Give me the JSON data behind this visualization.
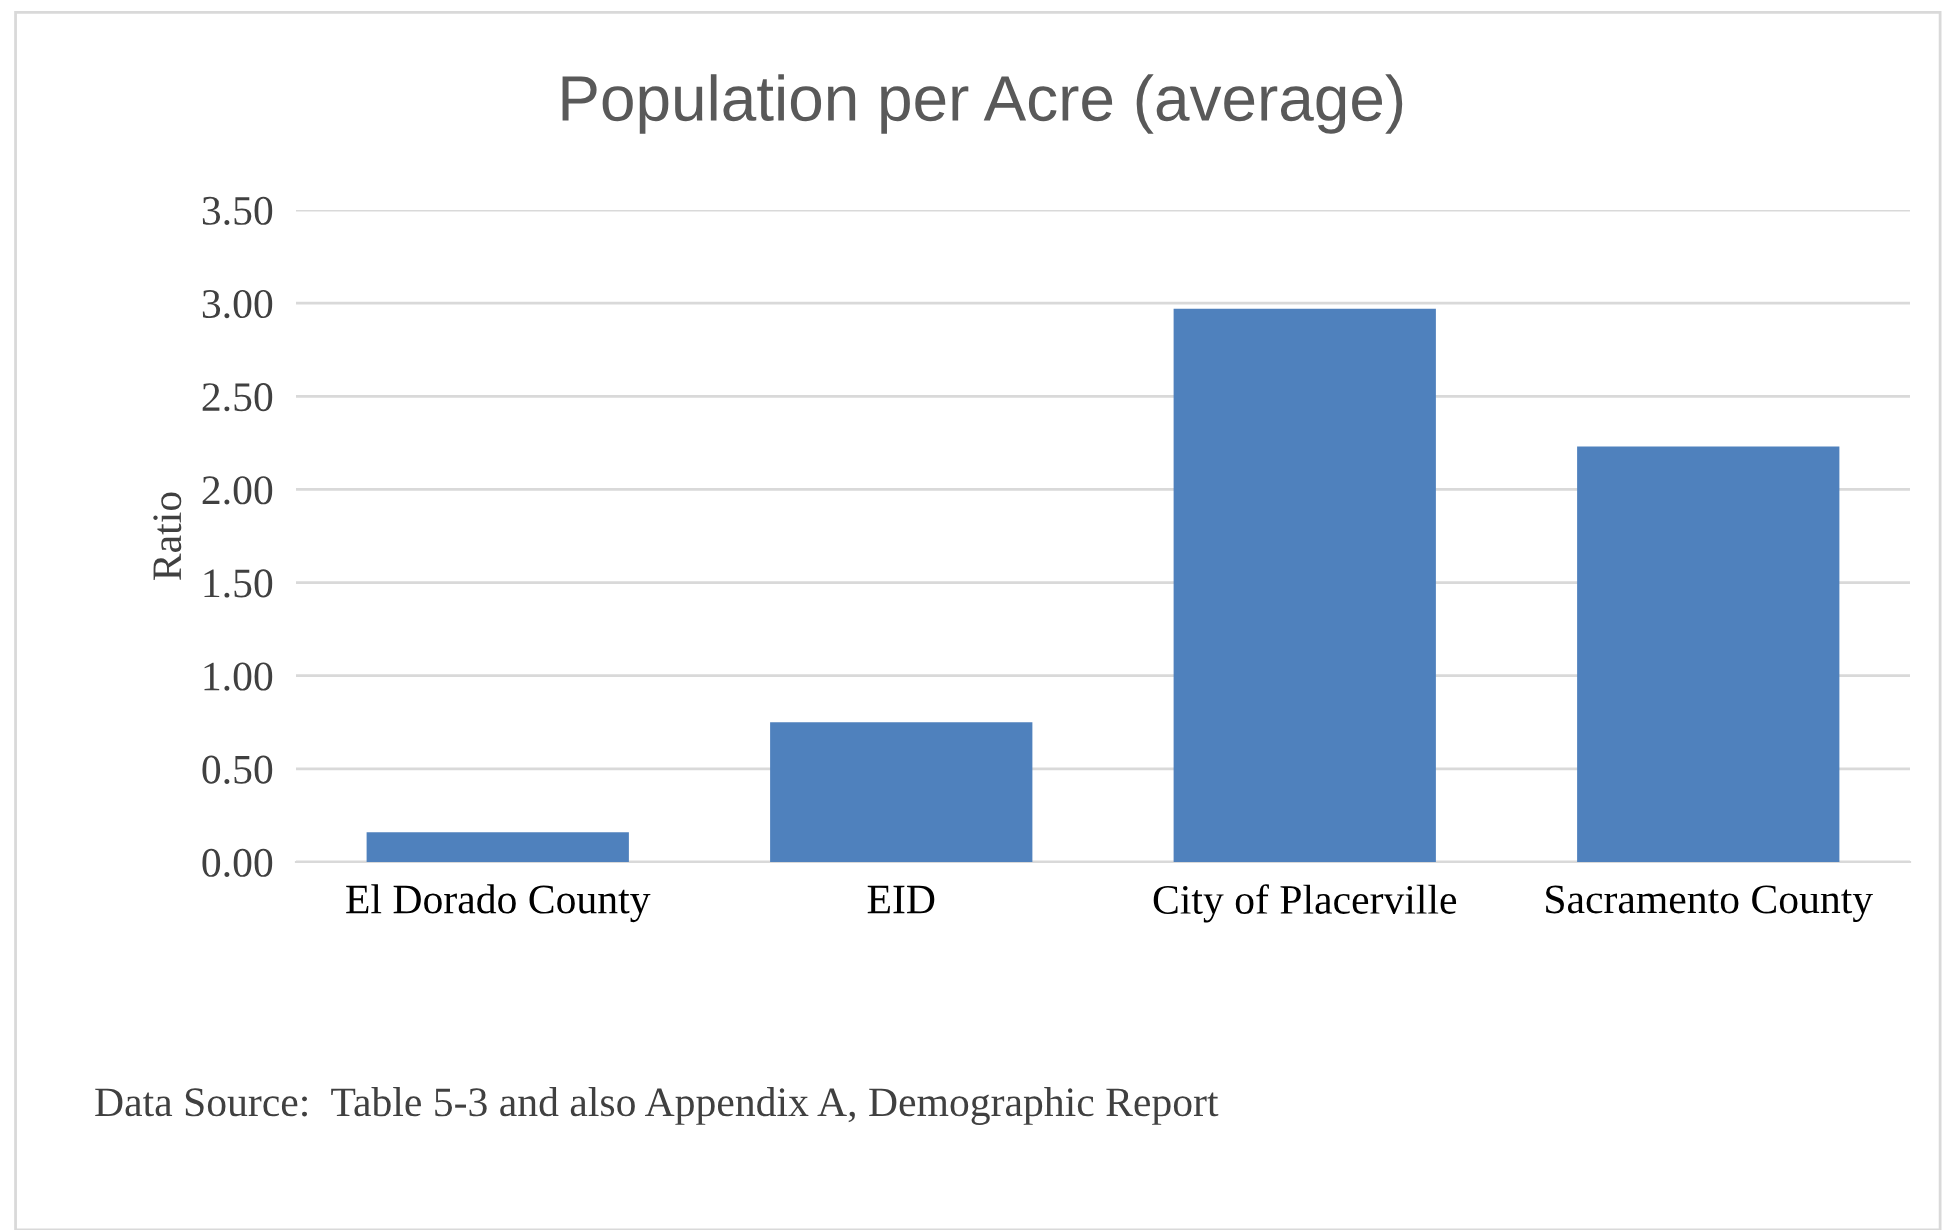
{
  "chart_data": {
    "type": "bar",
    "title": "Population per Acre (average)",
    "ylabel": "Ratio",
    "categories": [
      "El Dorado County",
      "EID",
      "City of Placerville",
      "Sacramento County"
    ],
    "values": [
      0.16,
      0.75,
      2.97,
      2.23
    ],
    "color": "#4f81bd",
    "ylim": [
      0,
      3.5
    ],
    "yticks": [
      {
        "value": 0,
        "label": "0.00"
      },
      {
        "value": 0.5,
        "label": "0.50"
      },
      {
        "value": 1,
        "label": "1.00"
      },
      {
        "value": 1.5,
        "label": "1.50"
      },
      {
        "value": 2,
        "label": "2.00"
      },
      {
        "value": 2.5,
        "label": "2.50"
      },
      {
        "value": 3,
        "label": "3.00"
      },
      {
        "value": 3.5,
        "label": "3.50"
      }
    ],
    "grid": "y",
    "legend": false,
    "annotations": [
      "Data Source:  Table 5-3 and also Appendix A, Demographic Report"
    ]
  }
}
